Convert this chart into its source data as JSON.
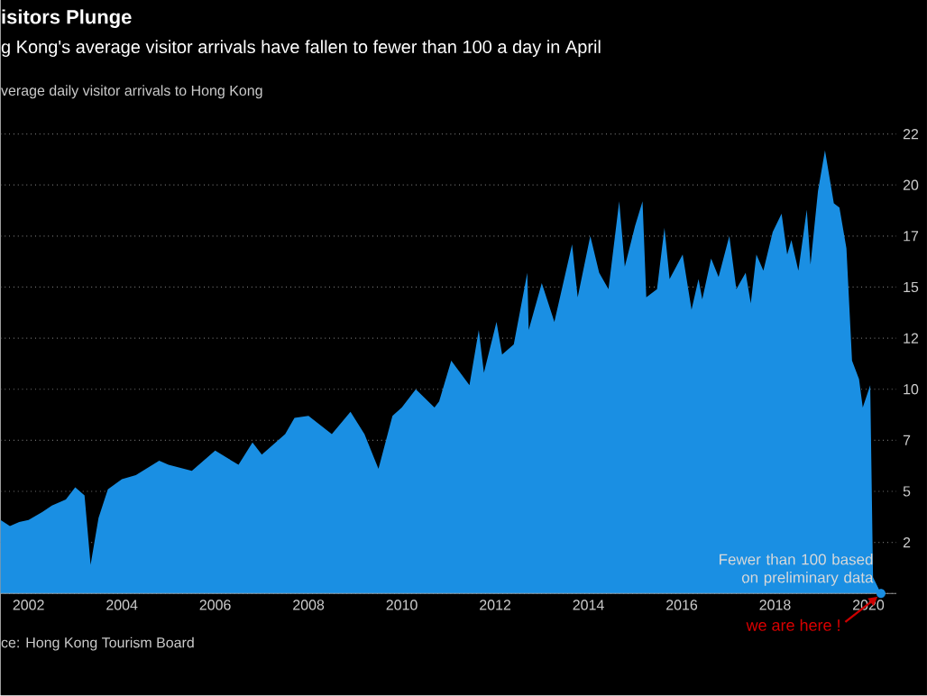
{
  "chart_data": {
    "type": "area",
    "title": "isitors Plunge",
    "subtitle": "g Kong's average visitor arrivals have fallen to fewer than 100 a day in April",
    "ylabel": "verage daily visitor arrivals to Hong Kong",
    "x": [
      2001.4,
      2001.6,
      2001.8,
      2002.0,
      2002.3,
      2002.5,
      2002.8,
      2003.0,
      2003.2,
      2003.33,
      2003.5,
      2003.7,
      2004.0,
      2004.3,
      2004.8,
      2005.0,
      2005.5,
      2006.0,
      2006.5,
      2006.8,
      2007.0,
      2007.5,
      2007.7,
      2008.0,
      2008.5,
      2008.9,
      2009.2,
      2009.5,
      2009.8,
      2010.0,
      2010.3,
      2010.7,
      2010.8,
      2011.06,
      2011.45,
      2011.65,
      2011.76,
      2012.03,
      2012.15,
      2012.4,
      2012.69,
      2012.72,
      2013.0,
      2013.27,
      2013.65,
      2013.77,
      2014.04,
      2014.23,
      2014.43,
      2014.66,
      2014.78,
      2015.0,
      2015.16,
      2015.24,
      2015.47,
      2015.63,
      2015.74,
      2016.02,
      2016.21,
      2016.36,
      2016.44,
      2016.63,
      2016.79,
      2017.02,
      2017.17,
      2017.37,
      2017.48,
      2017.6,
      2017.75,
      2017.95,
      2018.14,
      2018.26,
      2018.35,
      2018.5,
      2018.68,
      2018.76,
      2018.92,
      2019.07,
      2019.26,
      2019.38,
      2019.53,
      2019.65,
      2019.8,
      2019.88,
      2020.04,
      2020.1,
      2020.27
    ],
    "series": [
      {
        "color": "#1a8fe3",
        "values": [
          3.6,
          3.3,
          3.5,
          3.6,
          4.0,
          4.3,
          4.6,
          5.2,
          4.8,
          1.4,
          3.7,
          5.1,
          5.6,
          5.8,
          6.5,
          6.3,
          6.0,
          7.0,
          6.3,
          7.4,
          6.8,
          7.8,
          8.6,
          8.7,
          7.8,
          8.9,
          7.8,
          6.1,
          8.7,
          9.1,
          10.0,
          9.1,
          9.4,
          11.4,
          10.2,
          12.9,
          10.8,
          13.3,
          11.7,
          12.2,
          15.7,
          12.9,
          15.2,
          13.3,
          17.1,
          14.5,
          17.5,
          15.7,
          14.9,
          19.2,
          16.0,
          18.0,
          19.2,
          14.5,
          14.9,
          17.9,
          15.4,
          16.6,
          13.9,
          15.4,
          14.4,
          16.4,
          15.5,
          17.5,
          14.9,
          15.7,
          14.2,
          16.6,
          15.8,
          17.7,
          18.6,
          16.6,
          17.3,
          15.8,
          18.8,
          16.1,
          19.7,
          21.7,
          19.1,
          18.9,
          16.9,
          11.4,
          10.5,
          9.1,
          10.2,
          0.8,
          0
        ]
      }
    ],
    "xlim": [
      2001.4,
      2020.6
    ],
    "xticks": [
      2002,
      2004,
      2006,
      2008,
      2010,
      2012,
      2014,
      2016,
      2018,
      2020
    ],
    "ylim": [
      0,
      22.5
    ],
    "yticks": [
      {
        "value": 0,
        "label": null
      },
      {
        "value": 2.5,
        "label": "2"
      },
      5,
      {
        "value": 7.5,
        "label": "7"
      },
      10,
      {
        "value": 12.5,
        "label": "12"
      },
      15,
      {
        "value": 17.5,
        "label": "17"
      },
      20,
      {
        "value": 22.5,
        "label": "22"
      }
    ],
    "grid": "y",
    "annotations": [
      "ce: Hong Kong Tourism Board",
      {
        "text": "Fewer than 100 based on preliminary data",
        "x": 2020.27,
        "y": 0
      },
      {
        "text": "we are here !",
        "x": 2020.27,
        "y": 0
      }
    ]
  }
}
